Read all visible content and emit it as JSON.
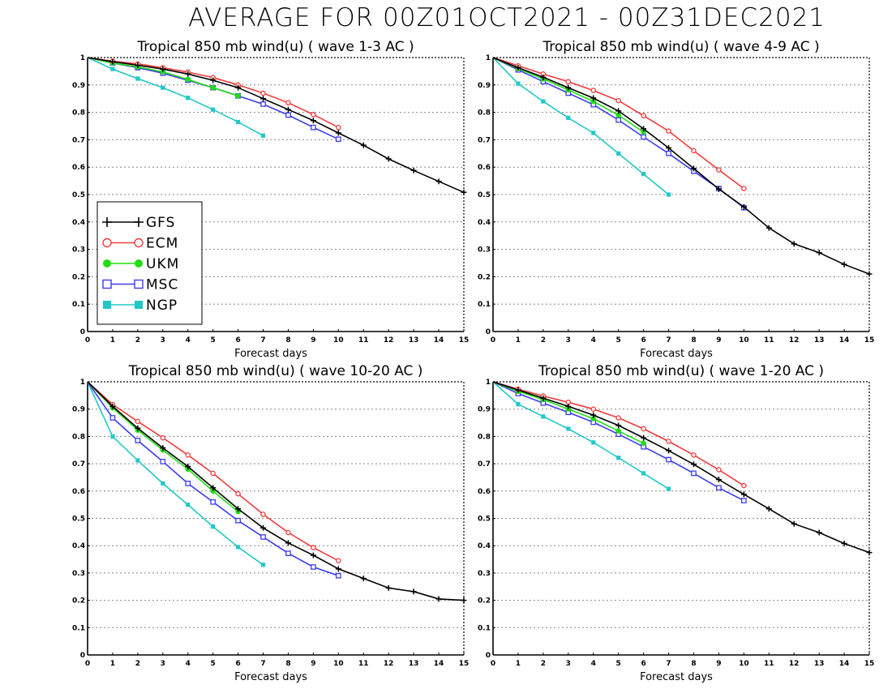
{
  "title": "AVERAGE FOR 00Z01OCT2021 - 00Z31DEC2021",
  "colors": {
    "GFS": "#000000",
    "ECM": "#f03c3c",
    "UKM": "#22dd11",
    "MSC": "#3c3cf0",
    "NGP": "#22c8c8"
  },
  "legend": {
    "position": "left-middle (top-left panel)",
    "entries": [
      {
        "name": "GFS",
        "marker": "plus"
      },
      {
        "name": "ECM",
        "marker": "open-circle"
      },
      {
        "name": "UKM",
        "marker": "filled-circle"
      },
      {
        "name": "MSC",
        "marker": "open-square"
      },
      {
        "name": "NGP",
        "marker": "filled-square"
      }
    ]
  },
  "chart_data": [
    {
      "type": "line",
      "title": "Tropical 850 mb wind(u) ( wave 1-3 AC )",
      "xlabel": "Forecast days",
      "ylabel": "",
      "xlim": [
        0,
        15
      ],
      "ylim": [
        0,
        1
      ],
      "x_ticks": [
        "0",
        "1",
        "2",
        "3",
        "4",
        "5",
        "6",
        "7",
        "8",
        "9",
        "10",
        "11",
        "12",
        "13",
        "14",
        "15"
      ],
      "y_ticks": [
        "0",
        "0.1",
        "0.2",
        "0.3",
        "0.4",
        "0.5",
        "0.6",
        "0.7",
        "0.8",
        "0.9",
        "1"
      ],
      "grid": "horizontal dotted",
      "series": [
        {
          "name": "GFS",
          "x": [
            0,
            1,
            2,
            3,
            4,
            5,
            6,
            7,
            8,
            9,
            10,
            11,
            12,
            13,
            14,
            15
          ],
          "values": [
            1,
            0.985,
            0.972,
            0.958,
            0.94,
            0.917,
            0.89,
            0.85,
            0.81,
            0.77,
            0.725,
            0.68,
            0.63,
            0.588,
            0.548,
            0.508
          ]
        },
        {
          "name": "ECM",
          "x": [
            0,
            1,
            2,
            3,
            4,
            5,
            6,
            7,
            8,
            9,
            10
          ],
          "values": [
            1,
            0.987,
            0.977,
            0.963,
            0.947,
            0.927,
            0.9,
            0.87,
            0.835,
            0.792,
            0.745
          ]
        },
        {
          "name": "UKM",
          "x": [
            0,
            1,
            2,
            3,
            4,
            5,
            6
          ],
          "values": [
            1,
            0.98,
            0.966,
            0.948,
            0.92,
            0.89,
            0.86
          ]
        },
        {
          "name": "MSC",
          "x": [
            0,
            1,
            2,
            3,
            4,
            5,
            6,
            7,
            8,
            9,
            10
          ],
          "values": [
            1,
            0.98,
            0.963,
            0.943,
            0.917,
            0.89,
            0.86,
            0.83,
            0.79,
            0.745,
            0.702
          ]
        },
        {
          "name": "NGP",
          "x": [
            0,
            1,
            2,
            3,
            4,
            5,
            6,
            7
          ],
          "values": [
            1,
            0.958,
            0.923,
            0.89,
            0.853,
            0.81,
            0.765,
            0.715
          ]
        }
      ]
    },
    {
      "type": "line",
      "title": "Tropical 850 mb wind(u) ( wave 4-9 AC )",
      "xlabel": "Forecast days",
      "ylabel": "",
      "xlim": [
        0,
        15
      ],
      "ylim": [
        0,
        1
      ],
      "x_ticks": [
        "0",
        "1",
        "2",
        "3",
        "4",
        "5",
        "6",
        "7",
        "8",
        "9",
        "10",
        "11",
        "12",
        "13",
        "14",
        "15"
      ],
      "y_ticks": [
        "0",
        "0.1",
        "0.2",
        "0.3",
        "0.4",
        "0.5",
        "0.6",
        "0.7",
        "0.8",
        "0.9",
        "1"
      ],
      "grid": "horizontal dotted",
      "series": [
        {
          "name": "GFS",
          "x": [
            0,
            1,
            2,
            3,
            4,
            5,
            6,
            7,
            8,
            9,
            10,
            11,
            12,
            13,
            14,
            15
          ],
          "values": [
            1,
            0.963,
            0.928,
            0.89,
            0.852,
            0.805,
            0.74,
            0.67,
            0.595,
            0.52,
            0.455,
            0.378,
            0.32,
            0.288,
            0.245,
            0.21
          ]
        },
        {
          "name": "ECM",
          "x": [
            0,
            1,
            2,
            3,
            4,
            5,
            6,
            7,
            8,
            9,
            10
          ],
          "values": [
            1,
            0.97,
            0.94,
            0.912,
            0.88,
            0.843,
            0.788,
            0.732,
            0.66,
            0.59,
            0.522
          ]
        },
        {
          "name": "UKM",
          "x": [
            0,
            1,
            2,
            3,
            4,
            5,
            6
          ],
          "values": [
            1,
            0.96,
            0.922,
            0.882,
            0.84,
            0.79,
            0.728
          ]
        },
        {
          "name": "MSC",
          "x": [
            0,
            1,
            2,
            3,
            4,
            5,
            6,
            7,
            8,
            9,
            10
          ],
          "values": [
            1,
            0.955,
            0.912,
            0.87,
            0.828,
            0.772,
            0.71,
            0.65,
            0.585,
            0.522,
            0.452
          ]
        },
        {
          "name": "NGP",
          "x": [
            0,
            1,
            2,
            3,
            4,
            5,
            6,
            7
          ],
          "values": [
            1,
            0.905,
            0.84,
            0.78,
            0.725,
            0.65,
            0.575,
            0.5
          ]
        }
      ]
    },
    {
      "type": "line",
      "title": "Tropical 850 mb wind(u) ( wave 10-20 AC )",
      "xlabel": "Forecast days",
      "ylabel": "",
      "xlim": [
        0,
        15
      ],
      "ylim": [
        0,
        1
      ],
      "x_ticks": [
        "0",
        "1",
        "2",
        "3",
        "4",
        "5",
        "6",
        "7",
        "8",
        "9",
        "10",
        "11",
        "12",
        "13",
        "14",
        "15"
      ],
      "y_ticks": [
        "0",
        "0.1",
        "0.2",
        "0.3",
        "0.4",
        "0.5",
        "0.6",
        "0.7",
        "0.8",
        "0.9",
        "1"
      ],
      "grid": "horizontal dotted",
      "series": [
        {
          "name": "GFS",
          "x": [
            0,
            1,
            2,
            3,
            4,
            5,
            6,
            7,
            8,
            9,
            10,
            11,
            12,
            13,
            14,
            15
          ],
          "values": [
            1,
            0.91,
            0.83,
            0.758,
            0.69,
            0.612,
            0.535,
            0.465,
            0.41,
            0.365,
            0.315,
            0.28,
            0.245,
            0.232,
            0.205,
            0.2
          ]
        },
        {
          "name": "ECM",
          "x": [
            0,
            1,
            2,
            3,
            4,
            5,
            6,
            7,
            8,
            9,
            10
          ],
          "values": [
            1,
            0.917,
            0.855,
            0.795,
            0.732,
            0.665,
            0.59,
            0.515,
            0.448,
            0.393,
            0.345
          ]
        },
        {
          "name": "UKM",
          "x": [
            0,
            1,
            2,
            3,
            4,
            5,
            6
          ],
          "values": [
            1,
            0.905,
            0.823,
            0.75,
            0.68,
            0.6,
            0.525
          ]
        },
        {
          "name": "MSC",
          "x": [
            0,
            1,
            2,
            3,
            4,
            5,
            6,
            7,
            8,
            9,
            10
          ],
          "values": [
            1,
            0.868,
            0.785,
            0.708,
            0.628,
            0.56,
            0.492,
            0.432,
            0.372,
            0.322,
            0.29
          ]
        },
        {
          "name": "NGP",
          "x": [
            0,
            1,
            2,
            3,
            4,
            5,
            6,
            7
          ],
          "values": [
            1,
            0.8,
            0.712,
            0.628,
            0.55,
            0.47,
            0.395,
            0.33
          ]
        }
      ]
    },
    {
      "type": "line",
      "title": "Tropical 850 mb wind(u) ( wave 1-20 AC )",
      "xlabel": "Forecast days",
      "ylabel": "",
      "xlim": [
        0,
        15
      ],
      "ylim": [
        0,
        1
      ],
      "x_ticks": [
        "0",
        "1",
        "2",
        "3",
        "4",
        "5",
        "6",
        "7",
        "8",
        "9",
        "10",
        "11",
        "12",
        "13",
        "14",
        "15"
      ],
      "y_ticks": [
        "0",
        "0.1",
        "0.2",
        "0.3",
        "0.4",
        "0.5",
        "0.6",
        "0.7",
        "0.8",
        "0.9",
        "1"
      ],
      "grid": "horizontal dotted",
      "series": [
        {
          "name": "GFS",
          "x": [
            0,
            1,
            2,
            3,
            4,
            5,
            6,
            7,
            8,
            9,
            10,
            11,
            12,
            13,
            14,
            15
          ],
          "values": [
            1,
            0.97,
            0.94,
            0.91,
            0.878,
            0.84,
            0.795,
            0.748,
            0.698,
            0.642,
            0.588,
            0.535,
            0.48,
            0.448,
            0.408,
            0.375
          ]
        },
        {
          "name": "ECM",
          "x": [
            0,
            1,
            2,
            3,
            4,
            5,
            6,
            7,
            8,
            9,
            10
          ],
          "values": [
            1,
            0.973,
            0.948,
            0.925,
            0.9,
            0.868,
            0.828,
            0.782,
            0.732,
            0.678,
            0.62
          ]
        },
        {
          "name": "UKM",
          "x": [
            0,
            1,
            2,
            3,
            4,
            5,
            6
          ],
          "values": [
            1,
            0.965,
            0.935,
            0.9,
            0.865,
            0.82,
            0.775
          ]
        },
        {
          "name": "MSC",
          "x": [
            0,
            1,
            2,
            3,
            4,
            5,
            6,
            7,
            8,
            9,
            10
          ],
          "values": [
            1,
            0.957,
            0.922,
            0.888,
            0.852,
            0.808,
            0.762,
            0.715,
            0.665,
            0.612,
            0.565
          ]
        },
        {
          "name": "NGP",
          "x": [
            0,
            1,
            2,
            3,
            4,
            5,
            6,
            7
          ],
          "values": [
            1,
            0.918,
            0.873,
            0.828,
            0.778,
            0.722,
            0.665,
            0.608
          ]
        }
      ]
    }
  ]
}
